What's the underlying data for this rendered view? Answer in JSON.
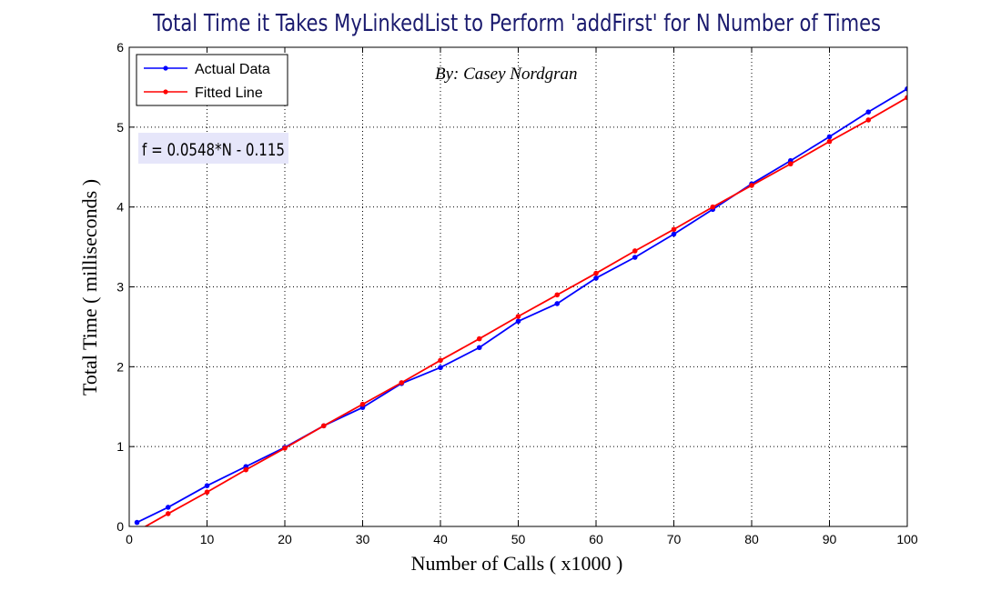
{
  "chart_data": {
    "type": "line",
    "title": "Total Time it Takes MyLinkedList to Perform 'addFirst' for N Number of Times",
    "xlabel": "Number of Calls ( x1000 )",
    "ylabel": "Total Time ( milliseconds )",
    "xlim": [
      0,
      100
    ],
    "ylim": [
      0,
      6
    ],
    "xticks": [
      0,
      10,
      20,
      30,
      40,
      50,
      60,
      70,
      80,
      90,
      100
    ],
    "yticks": [
      0,
      1,
      2,
      3,
      4,
      5,
      6
    ],
    "grid": true,
    "legend_position": "top-left",
    "annotations": {
      "byline": "By: Casey Nordgran",
      "equation": "f = 0.0548*N - 0.115"
    },
    "series": [
      {
        "name": "Actual Data",
        "color": "#0000ff",
        "x": [
          1,
          5,
          10,
          15,
          20,
          25,
          30,
          35,
          40,
          45,
          50,
          55,
          60,
          65,
          70,
          75,
          80,
          85,
          90,
          95,
          100
        ],
        "y": [
          0.05,
          0.24,
          0.51,
          0.75,
          0.99,
          1.26,
          1.49,
          1.79,
          1.99,
          2.24,
          2.57,
          2.79,
          3.11,
          3.37,
          3.66,
          3.97,
          4.29,
          4.58,
          4.88,
          5.19,
          5.48
        ]
      },
      {
        "name": "Fitted Line",
        "color": "#ff0000",
        "x": [
          1,
          5,
          10,
          15,
          20,
          25,
          30,
          35,
          40,
          45,
          50,
          55,
          60,
          65,
          70,
          75,
          80,
          85,
          90,
          95,
          100
        ],
        "y": [
          -0.06,
          0.16,
          0.43,
          0.71,
          0.98,
          1.26,
          1.53,
          1.8,
          2.08,
          2.35,
          2.63,
          2.9,
          3.17,
          3.45,
          3.72,
          4.0,
          4.27,
          4.54,
          4.82,
          5.09,
          5.37
        ]
      }
    ]
  }
}
